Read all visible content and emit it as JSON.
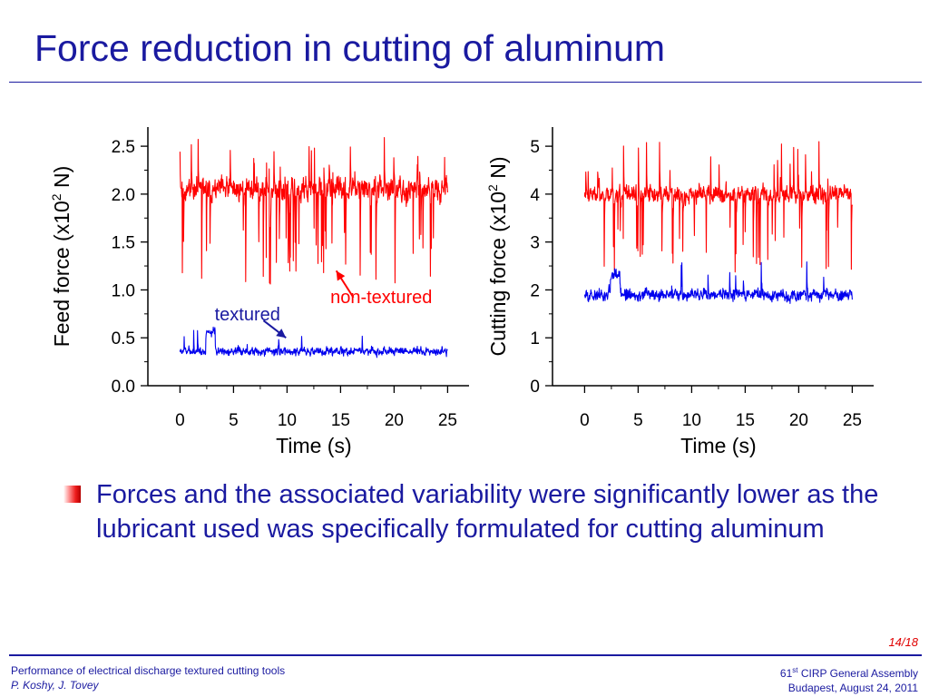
{
  "slide": {
    "title": "Force reduction in cutting of aluminum",
    "bullet": "Forces and the associated variability were significantly lower as the lubricant used was specifically formulated for cutting aluminum",
    "page": "14/18"
  },
  "footer": {
    "left_line1": "Performance of electrical discharge textured cutting tools",
    "left_line2": "P. Koshy, J. Tovey",
    "right_ordinal": "61",
    "right_sup": "st",
    "right_line1_rest": " CIRP General Assembly",
    "right_line2": "Budapest, August 24, 2011"
  },
  "colors": {
    "brand": "#1a1aa0",
    "accent": "#e00000",
    "non_textured": "#ff0000",
    "textured": "#0000ee"
  },
  "chart_data": [
    {
      "type": "line",
      "xlabel": "Time (s)",
      "ylabel_pre": "Feed force (x10",
      "ylabel_sup": "2",
      "ylabel_post": " N)",
      "xlim": [
        -3,
        27
      ],
      "ylim": [
        0,
        2.7
      ],
      "xticks": [
        0,
        5,
        10,
        15,
        20,
        25
      ],
      "xtick_labels": [
        "0",
        "5",
        "10",
        "15",
        "20",
        "25"
      ],
      "yticks": [
        0,
        0.5,
        1.0,
        1.5,
        2.0,
        2.5
      ],
      "ytick_labels": [
        "0.0",
        "0.5",
        "1.0",
        "1.5",
        "2.0",
        "2.5"
      ],
      "series": [
        {
          "name": "non-textured",
          "color": "#ff0000",
          "x_range": [
            0,
            25
          ],
          "mean": 2.05,
          "noise": 0.12,
          "dips": 0.05,
          "dip_min": 1.05,
          "spikes": 0.03,
          "spike_max": 2.6,
          "seed": 11
        },
        {
          "name": "textured",
          "color": "#0000ee",
          "x_range": [
            0,
            25
          ],
          "mean": 0.36,
          "noise": 0.045,
          "dips": 0.0,
          "dip_min": 0.15,
          "spikes": 0.01,
          "spike_max": 0.58,
          "seed": 7
        }
      ],
      "annotations": [
        {
          "text": "non-textured",
          "color": "#ff0000",
          "x": 18.8,
          "y": 0.93,
          "arrow_from": [
            16.2,
            0.92
          ],
          "arrow_to": [
            14.6,
            1.2
          ]
        },
        {
          "text": "textured",
          "color": "#1a1aa0",
          "x": 6.3,
          "y": 0.75,
          "arrow_from": [
            7.8,
            0.68
          ],
          "arrow_to": [
            9.9,
            0.5
          ]
        }
      ]
    },
    {
      "type": "line",
      "xlabel": "Time (s)",
      "ylabel_pre": "Cutting force (x10",
      "ylabel_sup": "2",
      "ylabel_post": " N)",
      "xlim": [
        -3,
        27
      ],
      "ylim": [
        0,
        5.4
      ],
      "xticks": [
        0,
        5,
        10,
        15,
        20,
        25
      ],
      "xtick_labels": [
        "0",
        "5",
        "10",
        "15",
        "20",
        "25"
      ],
      "yticks": [
        0,
        1,
        2,
        3,
        4,
        5
      ],
      "ytick_labels": [
        "0",
        "1",
        "2",
        "3",
        "4",
        "5"
      ],
      "series": [
        {
          "name": "non-textured",
          "color": "#ff0000",
          "x_range": [
            0,
            25
          ],
          "mean": 4.0,
          "noise": 0.18,
          "dips": 0.04,
          "dip_min": 2.3,
          "spikes": 0.03,
          "spike_max": 5.1,
          "seed": 23
        },
        {
          "name": "textured",
          "color": "#0000ee",
          "x_range": [
            0,
            25
          ],
          "mean": 1.9,
          "noise": 0.13,
          "dips": 0.0,
          "dip_min": 1.5,
          "spikes": 0.02,
          "spike_max": 2.6,
          "seed": 5
        }
      ],
      "annotations": []
    }
  ]
}
